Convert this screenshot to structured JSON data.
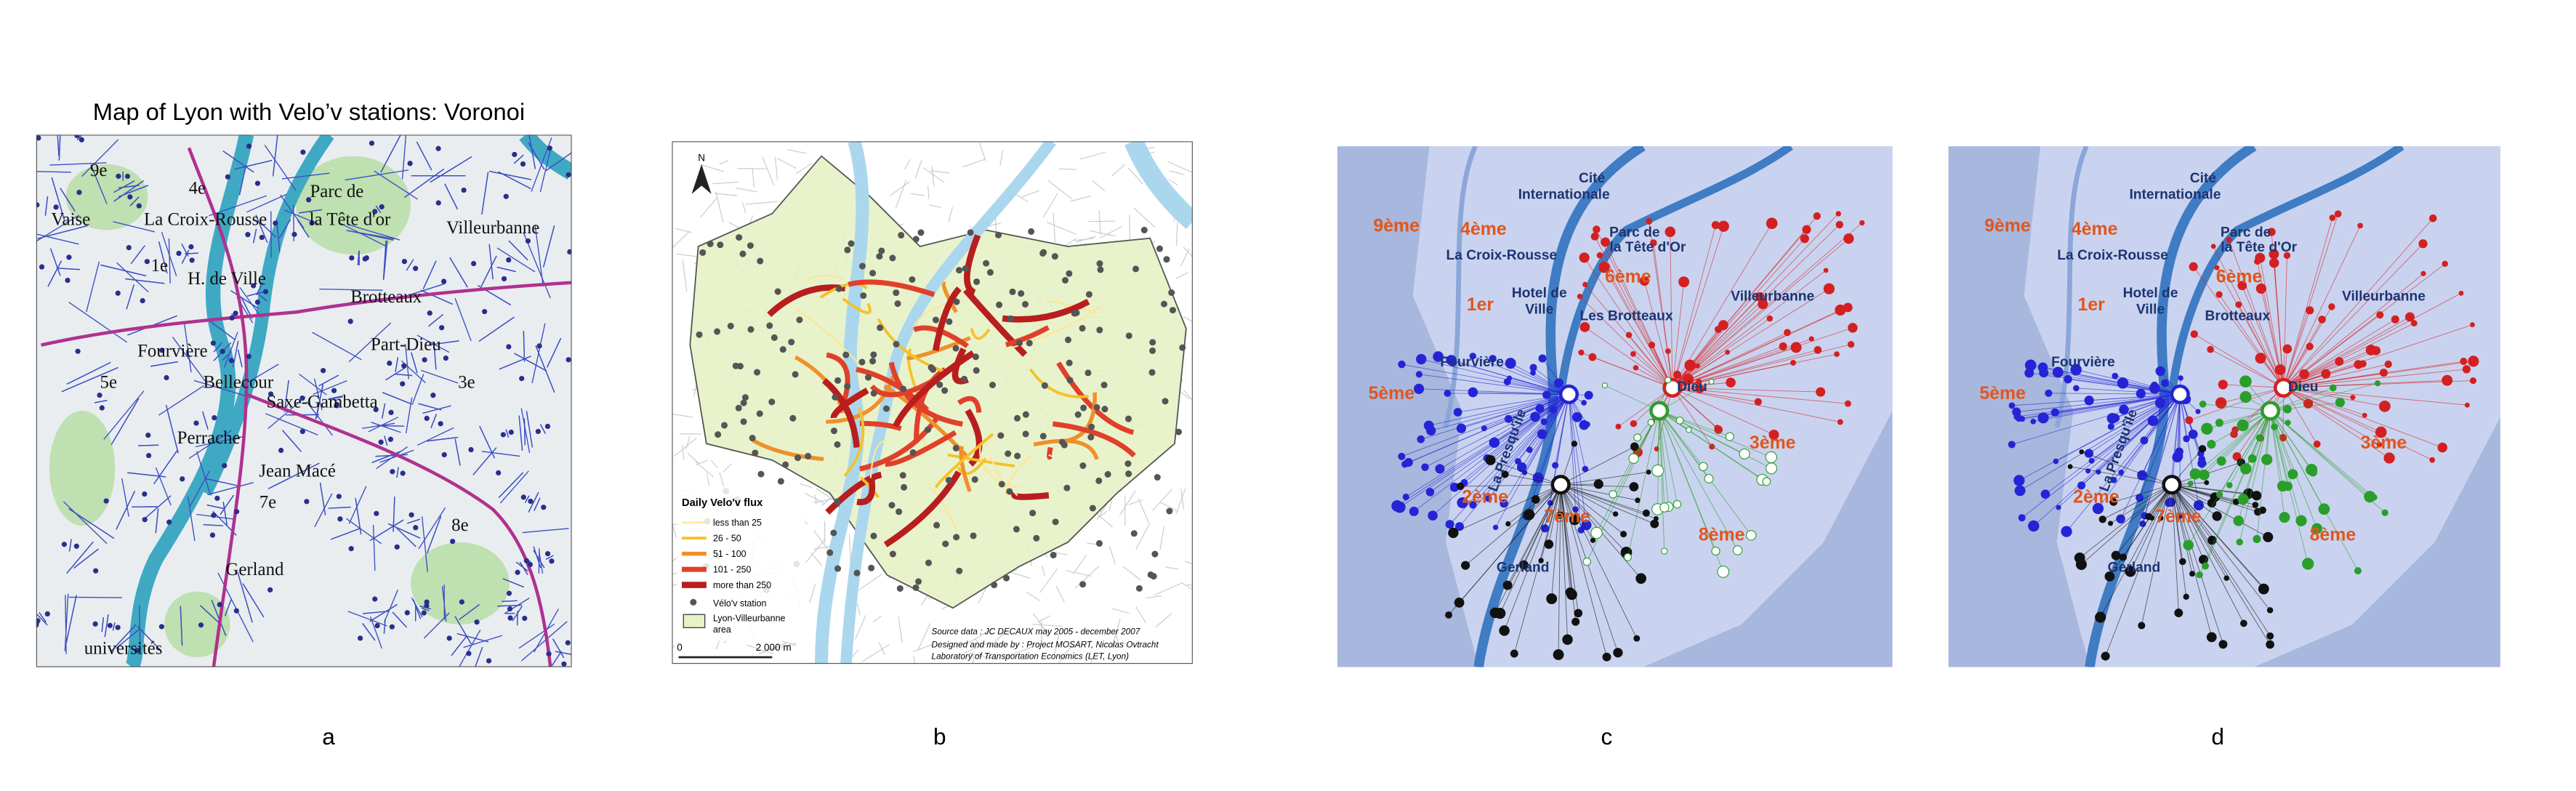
{
  "panels": [
    {
      "label": "a",
      "title": "Map of Lyon with Velo’v stations: Voronoi",
      "map_labels": [
        "9e",
        "4e",
        "Vaise",
        "La Croix-Rousse",
        "Parc de",
        "la Tête d'or",
        "Villeurbanne",
        "1e",
        "H. de Ville",
        "Brotteaux",
        "Fourvière",
        "Part-Dieu",
        "5e",
        "Bellecour",
        "Saxe-Gambetta",
        "3e",
        "Perrache",
        "Jean Macé",
        "7e",
        "8e",
        "Gerland",
        "universités"
      ]
    },
    {
      "label": "b",
      "map_labels": [
        "N"
      ],
      "legend": {
        "title": "Daily Velo'v flux",
        "items": [
          "less than 25",
          "26 - 50",
          "51 - 100",
          "101 - 250",
          "more than 250",
          "Vélo'v station",
          "Lyon-Villeurbanne",
          "area"
        ]
      },
      "scale": [
        "0",
        "2 000 m"
      ],
      "source": [
        "Source data : JC DECAUX  may 2005  -  december 2007",
        "Designed and made by : Project MOSART, Nicolas Ovtracht",
        "Laboratory of Transportation Economics (LET, Lyon)"
      ]
    },
    {
      "label": "c",
      "map_labels": [
        "Cité",
        "Internationale",
        "9ème",
        "4ème",
        "La Croix-Rousse",
        "Parc de",
        "la Tête d'Or",
        "6ème",
        "1er",
        "Hotel de",
        "Ville",
        "Les Brotteaux",
        "Villeurbanne",
        "Fourvière",
        "5ème",
        "Dieu",
        "3ème",
        "2ème",
        "7ème",
        "8ème",
        "Gerland",
        "La Presqu'île"
      ]
    },
    {
      "label": "d",
      "map_labels": [
        "Cité",
        "Internationale",
        "9ème",
        "4ème",
        "La Croix-Rousse",
        "Parc de",
        "la Tête d'Or",
        "6ème",
        "1er",
        "Hotel de",
        "Ville",
        "Brotteaux",
        "Villeurbanne",
        "Fourvière",
        "5ème",
        "Dieu",
        "3ème",
        "2ème",
        "7ème",
        "8ème",
        "Gerland",
        "La Presqu'île"
      ]
    }
  ]
}
